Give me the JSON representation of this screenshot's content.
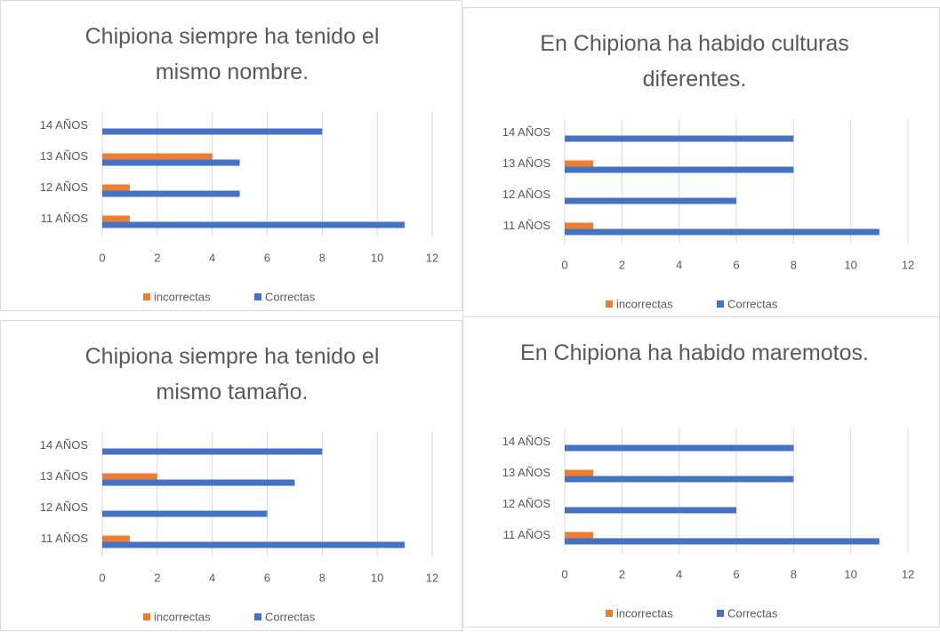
{
  "chart_data": [
    {
      "type": "bar",
      "title": "Chipiona siempre ha tenido el mismo nombre.",
      "categories": [
        "11 AÑOS",
        "12 AÑOS",
        "13 AÑOS",
        "14 AÑOS"
      ],
      "series": [
        {
          "name": "incorrectas",
          "color": "#ed7d31",
          "values": [
            1,
            1,
            4,
            0
          ]
        },
        {
          "name": "Correctas",
          "color": "#4472c4",
          "values": [
            11,
            5,
            5,
            8
          ]
        }
      ],
      "xlim": [
        0,
        12
      ],
      "xticks": [
        0,
        2,
        4,
        6,
        8,
        10,
        12
      ],
      "grid": true
    },
    {
      "type": "bar",
      "title": "En Chipiona ha habido culturas diferentes.",
      "categories": [
        "11 AÑOS",
        "12 AÑOS",
        "13 AÑOS",
        "14 AÑOS"
      ],
      "series": [
        {
          "name": "incorrectas",
          "color": "#ed7d31",
          "values": [
            1,
            0,
            1,
            0
          ]
        },
        {
          "name": "Correctas",
          "color": "#4472c4",
          "values": [
            11,
            6,
            8,
            8
          ]
        }
      ],
      "xlim": [
        0,
        12
      ],
      "xticks": [
        0,
        2,
        4,
        6,
        8,
        10,
        12
      ],
      "grid": true
    },
    {
      "type": "bar",
      "title": "Chipiona siempre ha tenido el mismo tamaño.",
      "categories": [
        "11 AÑOS",
        "12 AÑOS",
        "13 AÑOS",
        "14 AÑOS"
      ],
      "series": [
        {
          "name": "incorrectas",
          "color": "#ed7d31",
          "values": [
            1,
            0,
            2,
            0
          ]
        },
        {
          "name": "Correctas",
          "color": "#4472c4",
          "values": [
            11,
            6,
            7,
            8
          ]
        }
      ],
      "xlim": [
        0,
        12
      ],
      "xticks": [
        0,
        2,
        4,
        6,
        8,
        10,
        12
      ],
      "grid": true
    },
    {
      "type": "bar",
      "title": "En Chipiona ha habido maremotos.",
      "categories": [
        "11 AÑOS",
        "12 AÑOS",
        "13 AÑOS",
        "14 AÑOS"
      ],
      "series": [
        {
          "name": "incorrectas",
          "color": "#ed7d31",
          "values": [
            1,
            0,
            1,
            0
          ]
        },
        {
          "name": "Correctas",
          "color": "#4472c4",
          "values": [
            11,
            6,
            8,
            8
          ]
        }
      ],
      "xlim": [
        0,
        12
      ],
      "xticks": [
        0,
        2,
        4,
        6,
        8,
        10,
        12
      ],
      "grid": true
    }
  ]
}
